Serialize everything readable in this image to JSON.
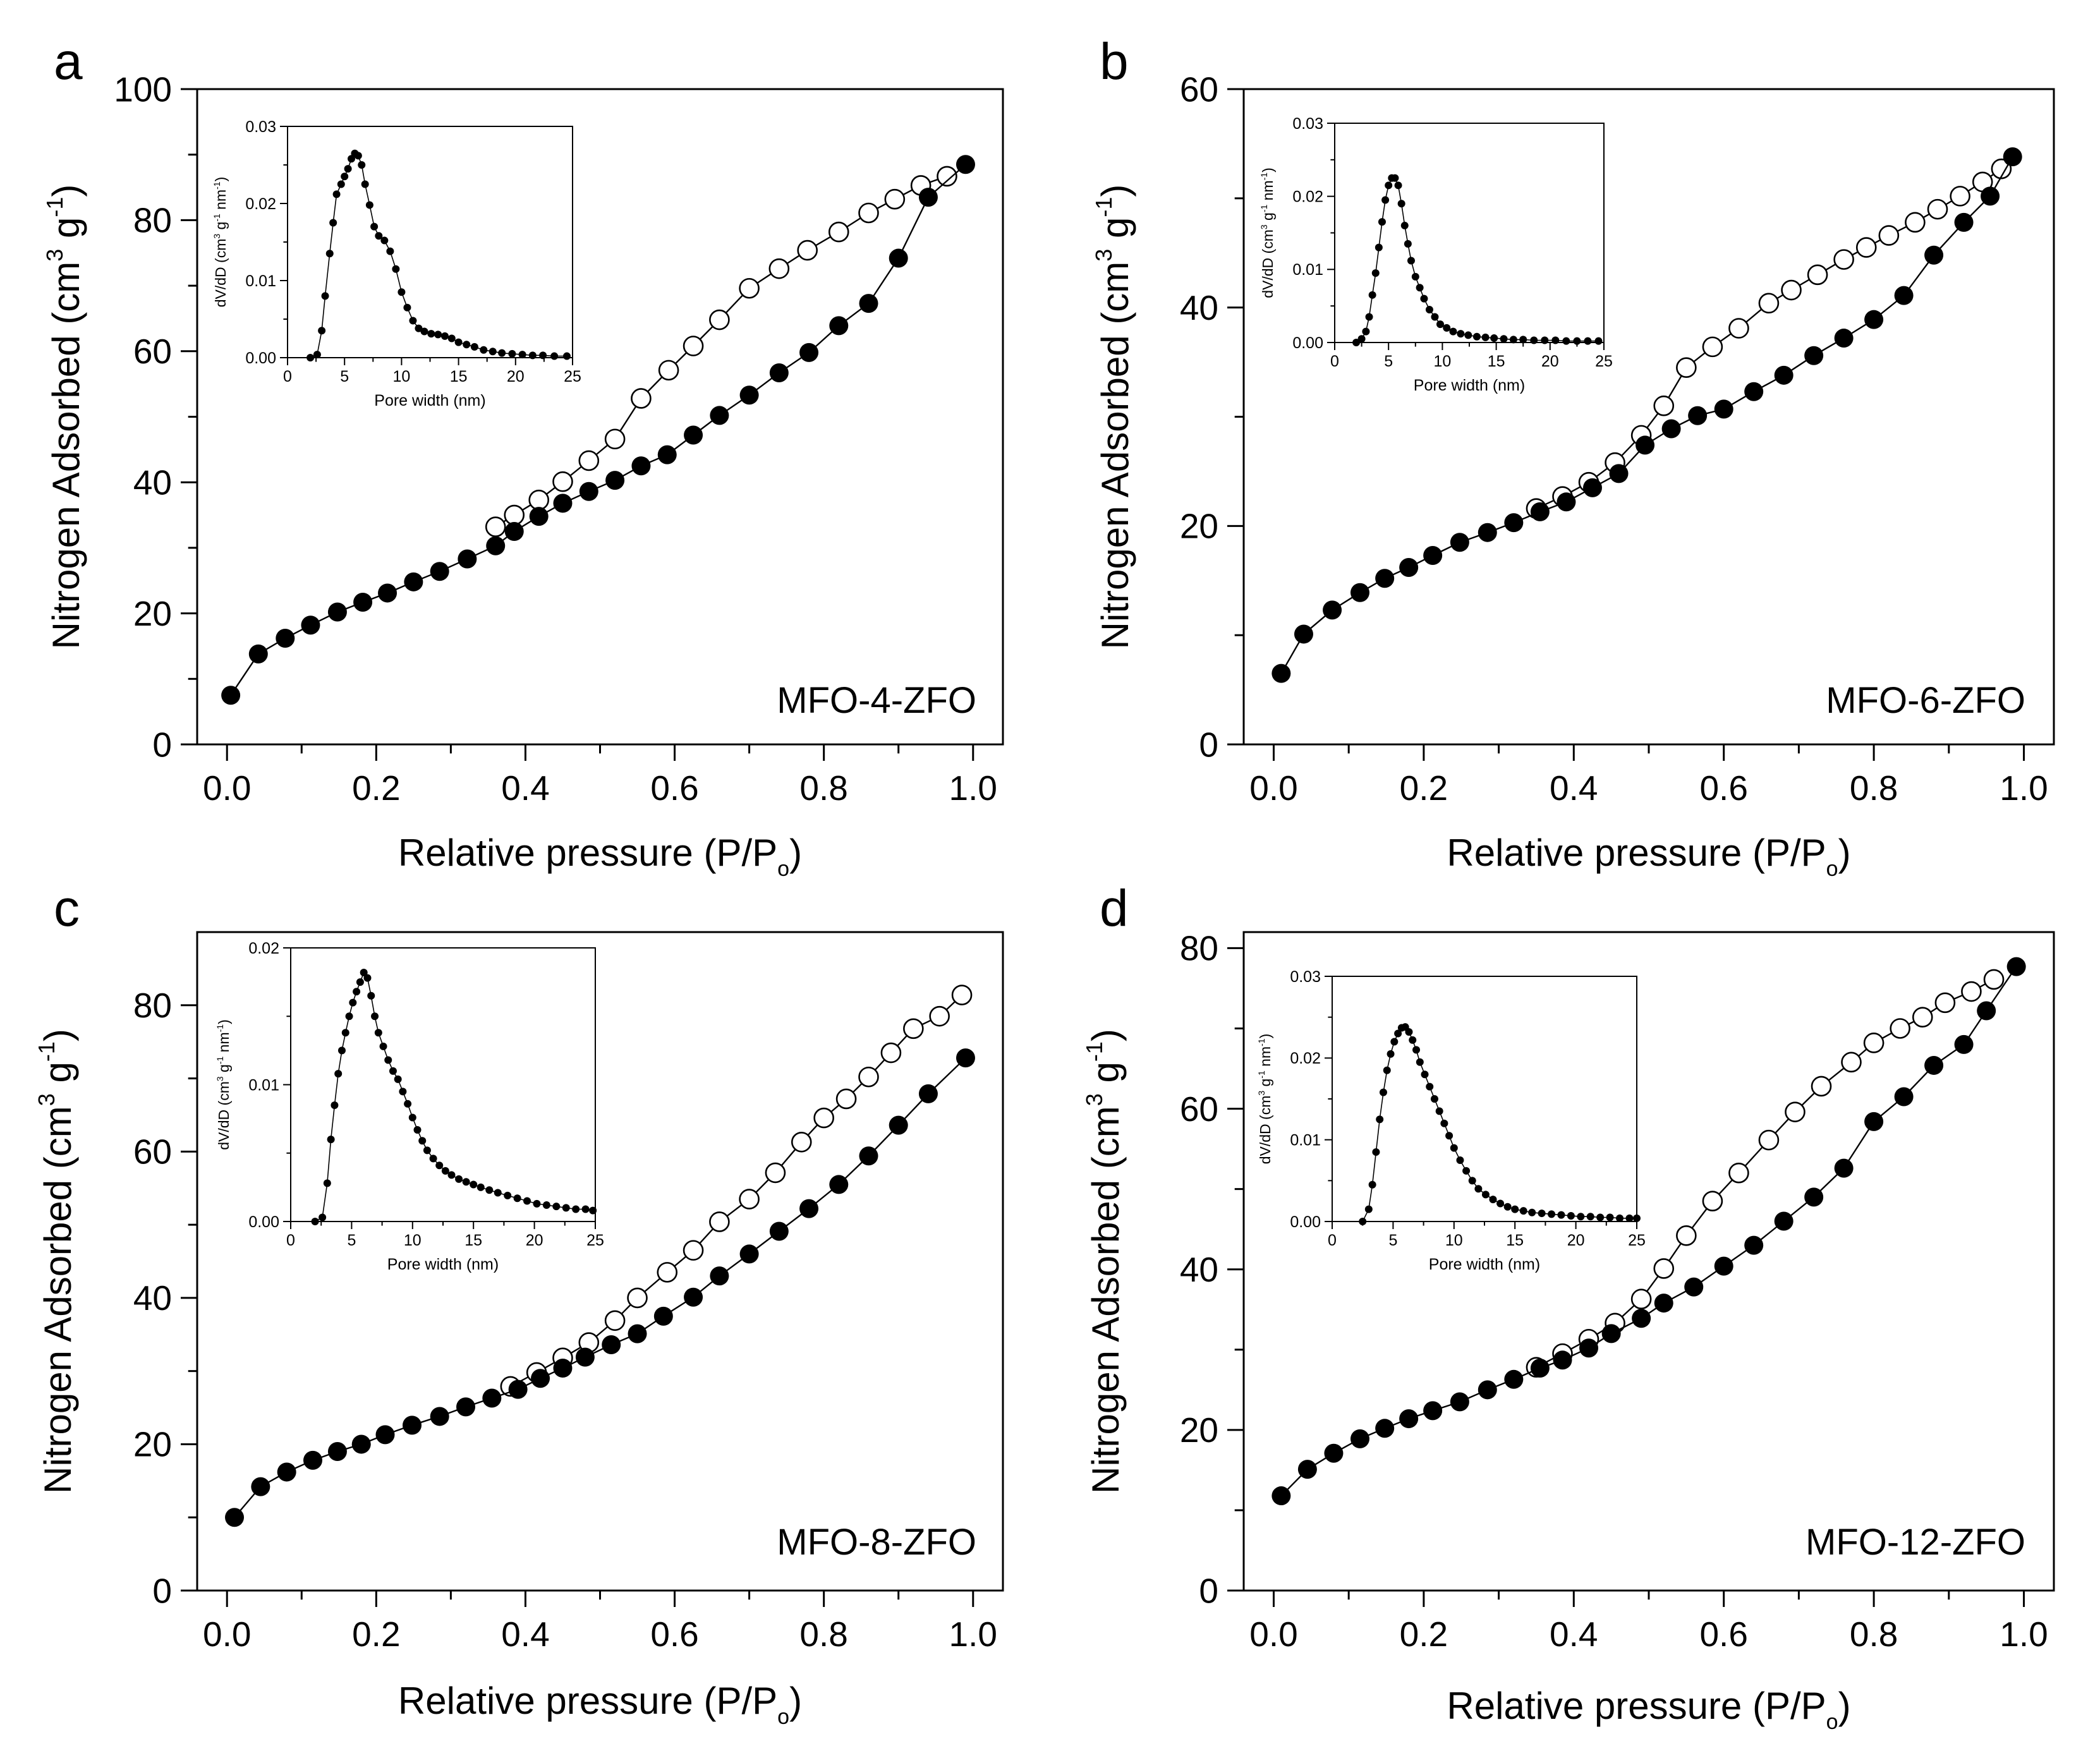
{
  "figure": {
    "style": {
      "ink": "#000000",
      "background": "#ffffff",
      "open_fill": "#ffffff"
    },
    "legend_meaning": {
      "filled": "adsorption",
      "open": "desorption"
    }
  },
  "chart_data": [
    {
      "id": "a",
      "type": "scatter",
      "panel_label": "a",
      "sample_label": "MFO-4-ZFO",
      "xlabel": "Relative pressure (P/P",
      "xlabel_sub": "o",
      "xlabel_close": ")",
      "ylabel": "Nitrogen Adsorbed (cm",
      "ylabel_sup3": "3",
      "ylabel_g": " g",
      "ylabel_supm1": "-1",
      "ylabel_close": ")",
      "xlim": [
        -0.04,
        1.04
      ],
      "ylim": [
        0,
        100
      ],
      "xticks": [
        0.0,
        0.2,
        0.4,
        0.6,
        0.8,
        1.0
      ],
      "xtick_labels": [
        "0.0",
        "0.2",
        "0.4",
        "0.6",
        "0.8",
        "1.0"
      ],
      "yticks": [
        0,
        20,
        40,
        60,
        80,
        100
      ],
      "ytick_labels": [
        "0",
        "20",
        "40",
        "60",
        "80",
        "100"
      ],
      "adsorption": {
        "x": [
          0.005,
          0.042,
          0.078,
          0.112,
          0.148,
          0.182,
          0.215,
          0.25,
          0.285,
          0.322,
          0.36,
          0.385,
          0.418,
          0.45,
          0.485,
          0.52,
          0.555,
          0.59,
          0.625,
          0.66,
          0.7,
          0.74,
          0.78,
          0.82,
          0.86,
          0.9,
          0.94,
          0.99
        ],
        "y": [
          7.5,
          13.8,
          16.2,
          18.2,
          20.2,
          21.7,
          23.1,
          24.8,
          26.4,
          28.3,
          30.3,
          32.5,
          34.8,
          36.8,
          38.6,
          40.3,
          42.5,
          44.2,
          47.2,
          50.2,
          53.3,
          56.7,
          59.8,
          63.9,
          67.3,
          74.2,
          83.5,
          88.5
        ]
      },
      "desorption": {
        "x": [
          0.36,
          0.385,
          0.418,
          0.45,
          0.485,
          0.52,
          0.555,
          0.592,
          0.625,
          0.66,
          0.7,
          0.74,
          0.778,
          0.82,
          0.86,
          0.895,
          0.93,
          0.965
        ],
        "y": [
          33.2,
          35.0,
          37.3,
          40.1,
          43.3,
          46.6,
          52.8,
          57.1,
          60.8,
          64.8,
          69.6,
          72.6,
          75.4,
          78.2,
          81.1,
          83.2,
          85.3,
          86.7
        ]
      },
      "inset": {
        "type": "scatter",
        "xlabel": "Pore width (nm)",
        "ylabel": "dV/dD (cm",
        "ylabel_unit": "3",
        "ylabel_tail": " g",
        "ylabel_sup": "-1",
        "ylabel_nm": " nm",
        "ylabel_close": ")",
        "xlim": [
          0,
          25
        ],
        "ylim": [
          0,
          0.03
        ],
        "xticks": [
          0,
          5,
          10,
          15,
          20,
          25
        ],
        "xtick_labels": [
          "0",
          "5",
          "10",
          "15",
          "20",
          "25"
        ],
        "yticks": [
          0.0,
          0.01,
          0.02,
          0.03
        ],
        "ytick_labels": [
          "0.00",
          "0.01",
          "0.02",
          "0.03"
        ],
        "x": [
          2.0,
          2.6,
          3.0,
          3.3,
          3.7,
          4.0,
          4.3,
          4.7,
          5.0,
          5.3,
          5.6,
          5.9,
          6.2,
          6.5,
          6.8,
          7.2,
          7.6,
          8.0,
          8.5,
          9.0,
          9.5,
          10.0,
          10.5,
          11.0,
          11.5,
          12.0,
          12.6,
          13.2,
          13.8,
          14.4,
          15.0,
          15.7,
          16.4,
          17.2,
          18.0,
          18.8,
          19.7,
          20.6,
          21.5,
          22.4,
          23.4,
          24.5
        ],
        "y": [
          0.0,
          0.0004,
          0.0035,
          0.008,
          0.0135,
          0.0175,
          0.0212,
          0.0225,
          0.0235,
          0.0245,
          0.0258,
          0.0265,
          0.0262,
          0.025,
          0.0225,
          0.0198,
          0.017,
          0.0158,
          0.0152,
          0.0138,
          0.0115,
          0.0085,
          0.0065,
          0.0048,
          0.0038,
          0.0034,
          0.0031,
          0.003,
          0.0028,
          0.0025,
          0.002,
          0.0017,
          0.0014,
          0.001,
          0.0008,
          0.0006,
          0.0005,
          0.0004,
          0.0003,
          0.0003,
          0.0002,
          0.0002
        ]
      }
    },
    {
      "id": "b",
      "type": "scatter",
      "panel_label": "b",
      "sample_label": "MFO-6-ZFO",
      "xlabel": "Relative pressure (P/P",
      "xlabel_sub": "o",
      "xlabel_close": ")",
      "ylabel": "Nitrogen Adsorbed (cm",
      "ylabel_sup3": "3",
      "ylabel_g": " g",
      "ylabel_supm1": "-1",
      "ylabel_close": ")",
      "xlim": [
        -0.04,
        1.04
      ],
      "ylim": [
        0,
        60
      ],
      "xticks": [
        0.0,
        0.2,
        0.4,
        0.6,
        0.8,
        1.0
      ],
      "xtick_labels": [
        "0.0",
        "0.2",
        "0.4",
        "0.6",
        "0.8",
        "1.0"
      ],
      "yticks": [
        0,
        20,
        40,
        60
      ],
      "ytick_labels": [
        "0",
        "20",
        "40",
        "60"
      ],
      "adsorption": {
        "x": [
          0.01,
          0.04,
          0.078,
          0.115,
          0.148,
          0.18,
          0.212,
          0.248,
          0.285,
          0.32,
          0.355,
          0.39,
          0.425,
          0.46,
          0.495,
          0.53,
          0.565,
          0.6,
          0.64,
          0.68,
          0.72,
          0.76,
          0.8,
          0.84,
          0.88,
          0.92,
          0.955,
          0.985
        ],
        "y": [
          6.5,
          10.1,
          12.3,
          13.9,
          15.2,
          16.2,
          17.3,
          18.5,
          19.4,
          20.3,
          21.3,
          22.2,
          23.5,
          24.8,
          27.4,
          28.9,
          30.1,
          30.7,
          32.3,
          33.8,
          35.6,
          37.2,
          38.9,
          41.1,
          44.8,
          47.8,
          50.2,
          53.8
        ]
      },
      "desorption": {
        "x": [
          0.35,
          0.385,
          0.42,
          0.455,
          0.49,
          0.52,
          0.55,
          0.585,
          0.62,
          0.66,
          0.69,
          0.725,
          0.76,
          0.79,
          0.82,
          0.855,
          0.885,
          0.915,
          0.945,
          0.97
        ],
        "y": [
          21.6,
          22.7,
          24.0,
          25.8,
          28.3,
          31.0,
          34.5,
          36.4,
          38.1,
          40.4,
          41.6,
          43.0,
          44.4,
          45.5,
          46.6,
          47.8,
          49.0,
          50.2,
          51.5,
          52.7
        ]
      },
      "inset": {
        "type": "scatter",
        "xlabel": "Pore width (nm)",
        "ylabel": "dV/dD (cm",
        "ylabel_unit": "3",
        "ylabel_tail": " g",
        "ylabel_sup": "-1",
        "ylabel_nm": " nm",
        "ylabel_close": ")",
        "xlim": [
          0,
          25
        ],
        "ylim": [
          0,
          0.03
        ],
        "xticks": [
          0,
          5,
          10,
          15,
          20,
          25
        ],
        "xtick_labels": [
          "0",
          "5",
          "10",
          "15",
          "20",
          "25"
        ],
        "yticks": [
          0.0,
          0.01,
          0.02,
          0.03
        ],
        "ytick_labels": [
          "0.00",
          "0.01",
          "0.02",
          "0.03"
        ],
        "x": [
          2.0,
          2.5,
          2.9,
          3.2,
          3.5,
          3.8,
          4.1,
          4.4,
          4.7,
          5.0,
          5.3,
          5.6,
          5.9,
          6.2,
          6.5,
          6.8,
          7.1,
          7.5,
          7.9,
          8.3,
          8.8,
          9.3,
          9.8,
          10.4,
          11.0,
          11.7,
          12.4,
          13.2,
          14.0,
          14.8,
          15.7,
          16.6,
          17.5,
          18.5,
          19.5,
          20.5,
          21.5,
          22.5,
          23.5,
          24.5
        ],
        "y": [
          0.0,
          0.0005,
          0.0015,
          0.0035,
          0.0065,
          0.0095,
          0.013,
          0.0165,
          0.0195,
          0.0215,
          0.0225,
          0.0225,
          0.0215,
          0.019,
          0.016,
          0.0135,
          0.0112,
          0.009,
          0.0075,
          0.006,
          0.0045,
          0.0035,
          0.0025,
          0.002,
          0.0015,
          0.0012,
          0.001,
          0.0008,
          0.0007,
          0.0006,
          0.0005,
          0.0004,
          0.0004,
          0.0003,
          0.0003,
          0.0003,
          0.0002,
          0.0002,
          0.0002,
          0.0002
        ]
      }
    },
    {
      "id": "c",
      "type": "scatter",
      "panel_label": "c",
      "sample_label": "MFO-8-ZFO",
      "xlabel": "Relative pressure (P/P",
      "xlabel_sub": "o",
      "xlabel_close": ")",
      "ylabel": "Nitrogen Adsorbed (cm",
      "ylabel_sup3": "3",
      "ylabel_g": " g",
      "ylabel_supm1": "-1",
      "ylabel_close": ")",
      "xlim": [
        -0.04,
        1.04
      ],
      "ylim": [
        0,
        90
      ],
      "xticks": [
        0.0,
        0.2,
        0.4,
        0.6,
        0.8,
        1.0
      ],
      "xtick_labels": [
        "0.0",
        "0.2",
        "0.4",
        "0.6",
        "0.8",
        "1.0"
      ],
      "yticks": [
        0,
        20,
        40,
        60,
        80
      ],
      "ytick_labels": [
        "0",
        "20",
        "40",
        "60",
        "80"
      ],
      "adsorption": {
        "x": [
          0.01,
          0.045,
          0.08,
          0.115,
          0.148,
          0.18,
          0.212,
          0.248,
          0.285,
          0.32,
          0.355,
          0.39,
          0.42,
          0.45,
          0.48,
          0.515,
          0.55,
          0.585,
          0.625,
          0.66,
          0.7,
          0.74,
          0.78,
          0.82,
          0.86,
          0.9,
          0.94,
          0.99
        ],
        "y": [
          10.0,
          14.2,
          16.2,
          17.8,
          19.0,
          20.0,
          21.3,
          22.6,
          23.8,
          25.1,
          26.3,
          27.5,
          29.0,
          30.4,
          31.9,
          33.6,
          35.1,
          37.5,
          40.1,
          43.0,
          46.0,
          49.1,
          52.2,
          55.5,
          59.4,
          63.6,
          67.9,
          72.8
        ]
      },
      "desorption": {
        "x": [
          0.38,
          0.415,
          0.45,
          0.485,
          0.52,
          0.55,
          0.59,
          0.625,
          0.66,
          0.7,
          0.735,
          0.77,
          0.8,
          0.83,
          0.86,
          0.89,
          0.92,
          0.955,
          0.985
        ],
        "y": [
          27.9,
          29.8,
          31.8,
          33.9,
          36.9,
          40.0,
          43.5,
          46.5,
          50.4,
          53.5,
          57.1,
          61.3,
          64.6,
          67.2,
          70.2,
          73.5,
          76.8,
          78.5,
          81.4
        ]
      },
      "inset": {
        "type": "scatter",
        "xlabel": "Pore width (nm)",
        "ylabel": "dV/dD (cm",
        "ylabel_unit": "3",
        "ylabel_tail": " g",
        "ylabel_sup": "-1",
        "ylabel_nm": " nm",
        "ylabel_close": ")",
        "xlim": [
          0,
          25
        ],
        "ylim": [
          0,
          0.02
        ],
        "xticks": [
          0,
          5,
          10,
          15,
          20,
          25
        ],
        "xtick_labels": [
          "0",
          "5",
          "10",
          "15",
          "20",
          "25"
        ],
        "yticks": [
          0.0,
          0.01,
          0.02
        ],
        "ytick_labels": [
          "0.00",
          "0.01",
          "0.02"
        ],
        "x": [
          2.0,
          2.6,
          3.0,
          3.3,
          3.6,
          3.9,
          4.2,
          4.5,
          4.8,
          5.1,
          5.4,
          5.7,
          6.0,
          6.3,
          6.6,
          6.9,
          7.2,
          7.6,
          8.0,
          8.4,
          8.8,
          9.2,
          9.6,
          10.0,
          10.4,
          10.8,
          11.2,
          11.7,
          12.2,
          12.7,
          13.2,
          13.8,
          14.4,
          15.0,
          15.6,
          16.3,
          17.0,
          17.8,
          18.6,
          19.4,
          20.2,
          21.0,
          21.8,
          22.6,
          23.4,
          24.2,
          24.8
        ],
        "y": [
          0.0,
          0.0003,
          0.0028,
          0.006,
          0.0085,
          0.0108,
          0.0125,
          0.0138,
          0.015,
          0.016,
          0.0168,
          0.0175,
          0.0182,
          0.0178,
          0.0165,
          0.015,
          0.0138,
          0.0128,
          0.0118,
          0.011,
          0.0104,
          0.0095,
          0.0086,
          0.0076,
          0.0067,
          0.0059,
          0.0052,
          0.0046,
          0.0041,
          0.0037,
          0.0034,
          0.0031,
          0.0029,
          0.0027,
          0.0025,
          0.0023,
          0.0021,
          0.0019,
          0.0017,
          0.0015,
          0.0013,
          0.0012,
          0.0011,
          0.001,
          0.0009,
          0.0009,
          0.0008
        ]
      }
    },
    {
      "id": "d",
      "type": "scatter",
      "panel_label": "d",
      "sample_label": "MFO-12-ZFO",
      "xlabel": "Relative pressure (P/P",
      "xlabel_sub": "o",
      "xlabel_close": ")",
      "ylabel": "Nitrogen Adsorbed (cm",
      "ylabel_sup3": "3",
      "ylabel_g": " g",
      "ylabel_supm1": "-1",
      "ylabel_close": ")",
      "xlim": [
        -0.04,
        1.04
      ],
      "ylim": [
        0,
        82
      ],
      "xticks": [
        0.0,
        0.2,
        0.4,
        0.6,
        0.8,
        1.0
      ],
      "xtick_labels": [
        "0.0",
        "0.2",
        "0.4",
        "0.6",
        "0.8",
        "1.0"
      ],
      "yticks": [
        0,
        20,
        40,
        60,
        80
      ],
      "ytick_labels": [
        "0",
        "20",
        "40",
        "60",
        "80"
      ],
      "adsorption": {
        "x": [
          0.01,
          0.045,
          0.08,
          0.115,
          0.148,
          0.18,
          0.212,
          0.248,
          0.285,
          0.32,
          0.355,
          0.385,
          0.42,
          0.45,
          0.49,
          0.52,
          0.56,
          0.6,
          0.64,
          0.68,
          0.72,
          0.76,
          0.8,
          0.84,
          0.88,
          0.92,
          0.95,
          0.99
        ],
        "y": [
          11.8,
          15.1,
          17.1,
          18.9,
          20.2,
          21.4,
          22.4,
          23.5,
          25.0,
          26.3,
          27.7,
          28.7,
          30.2,
          32.0,
          33.9,
          35.8,
          37.8,
          40.4,
          43.0,
          46.0,
          49.0,
          52.6,
          58.4,
          61.5,
          65.4,
          68.0,
          72.2,
          77.7
        ]
      },
      "desorption": {
        "x": [
          0.35,
          0.385,
          0.42,
          0.455,
          0.49,
          0.52,
          0.55,
          0.585,
          0.62,
          0.66,
          0.695,
          0.73,
          0.77,
          0.8,
          0.835,
          0.865,
          0.895,
          0.93,
          0.96
        ],
        "y": [
          27.8,
          29.5,
          31.3,
          33.3,
          36.3,
          40.1,
          44.2,
          48.5,
          52.0,
          56.1,
          59.6,
          62.8,
          65.8,
          68.2,
          70.0,
          71.4,
          73.2,
          74.6,
          76.1
        ]
      },
      "inset": {
        "type": "scatter",
        "xlabel": "Pore width (nm)",
        "ylabel": "dV/dD (cm",
        "ylabel_unit": "3",
        "ylabel_tail": " g",
        "ylabel_sup": "-1",
        "ylabel_nm": " nm",
        "ylabel_close": ")",
        "xlim": [
          0,
          25
        ],
        "ylim": [
          0,
          0.03
        ],
        "xticks": [
          0,
          5,
          10,
          15,
          20,
          25
        ],
        "xtick_labels": [
          "0",
          "5",
          "10",
          "15",
          "20",
          "25"
        ],
        "yticks": [
          0.0,
          0.01,
          0.02,
          0.03
        ],
        "ytick_labels": [
          "0.00",
          "0.01",
          "0.02",
          "0.03"
        ],
        "x": [
          2.5,
          3.0,
          3.3,
          3.6,
          3.9,
          4.2,
          4.5,
          4.8,
          5.1,
          5.4,
          5.7,
          6.0,
          6.3,
          6.6,
          6.9,
          7.2,
          7.6,
          8.0,
          8.4,
          8.8,
          9.2,
          9.6,
          10.0,
          10.5,
          11.0,
          11.5,
          12.0,
          12.6,
          13.2,
          13.8,
          14.4,
          15.0,
          15.7,
          16.4,
          17.2,
          18.0,
          18.8,
          19.6,
          20.4,
          21.2,
          22.0,
          22.8,
          23.6,
          24.4,
          25.0
        ],
        "y": [
          0.0,
          0.0015,
          0.0045,
          0.0085,
          0.0125,
          0.0158,
          0.0185,
          0.0205,
          0.022,
          0.023,
          0.0237,
          0.0238,
          0.0232,
          0.0222,
          0.021,
          0.0195,
          0.018,
          0.0165,
          0.015,
          0.0135,
          0.012,
          0.0105,
          0.009,
          0.0075,
          0.0062,
          0.005,
          0.004,
          0.0033,
          0.0027,
          0.0022,
          0.0018,
          0.0015,
          0.0013,
          0.0011,
          0.001,
          0.0009,
          0.0008,
          0.0007,
          0.0006,
          0.0006,
          0.0005,
          0.0005,
          0.0004,
          0.0004,
          0.0004
        ]
      }
    }
  ]
}
